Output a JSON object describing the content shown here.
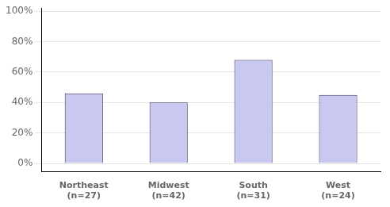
{
  "chart_data": {
    "type": "bar",
    "categories": [
      "Northeast\n(n=27)",
      "Midwest\n(n=42)",
      "South\n(n=31)",
      "West\n(n=24)"
    ],
    "values": [
      0.46,
      0.4,
      0.68,
      0.45
    ],
    "color": "#c8c8f0",
    "ylim": [
      -0.055,
      1.02
    ],
    "yticks": [
      {
        "value": 0,
        "label": "0%"
      },
      {
        "value": 0.2,
        "label": "20%"
      },
      {
        "value": 0.4,
        "label": "40%"
      },
      {
        "value": 0.6,
        "label": "60%"
      },
      {
        "value": 0.8,
        "label": "80%"
      },
      {
        "value": 1.0,
        "label": "100%"
      }
    ],
    "grid": true
  }
}
